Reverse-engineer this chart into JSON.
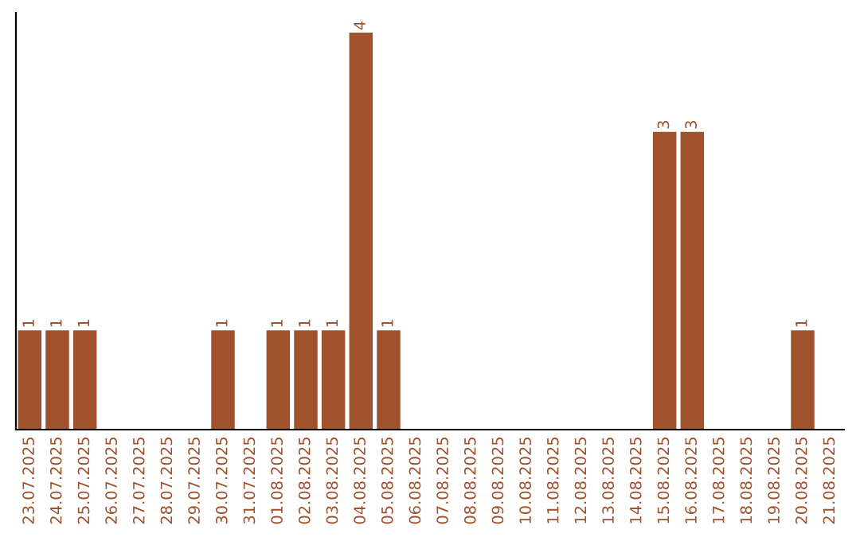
{
  "chart_data": {
    "type": "bar",
    "categories": [
      "23.07.2025",
      "24.07.2025",
      "25.07.2025",
      "26.07.2025",
      "27.07.2025",
      "28.07.2025",
      "29.07.2025",
      "30.07.2025",
      "31.07.2025",
      "01.08.2025",
      "02.08.2025",
      "03.08.2025",
      "04.08.2025",
      "05.08.2025",
      "06.08.2025",
      "07.08.2025",
      "08.08.2025",
      "09.08.2025",
      "10.08.2025",
      "11.08.2025",
      "12.08.2025",
      "13.08.2025",
      "14.08.2025",
      "15.08.2025",
      "16.08.2025",
      "17.08.2025",
      "18.08.2025",
      "19.08.2025",
      "20.08.2025",
      "21.08.2025"
    ],
    "values": [
      1,
      1,
      1,
      0,
      0,
      0,
      0,
      1,
      0,
      1,
      1,
      1,
      4,
      1,
      0,
      0,
      0,
      0,
      0,
      0,
      0,
      0,
      0,
      3,
      3,
      0,
      0,
      0,
      1,
      0
    ],
    "value_labels": [
      "1",
      "1",
      "1",
      null,
      null,
      null,
      null,
      "1",
      null,
      "1",
      "1",
      "1",
      "4",
      "1",
      null,
      null,
      null,
      null,
      null,
      null,
      null,
      null,
      null,
      "3",
      "3",
      null,
      null,
      null,
      "1",
      null
    ],
    "color": "#a0522d",
    "grid": false,
    "legend": false,
    "tick_labels": "x"
  }
}
